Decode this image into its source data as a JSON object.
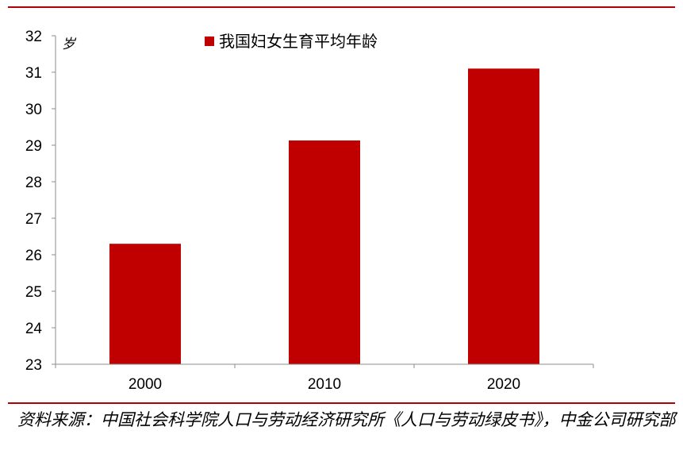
{
  "chart_data": {
    "type": "bar",
    "categories": [
      "2000",
      "2010",
      "2020"
    ],
    "series": [
      {
        "name": "我国妇女生育平均年龄",
        "values": [
          26.3,
          29.13,
          31.1
        ],
        "color": "#c00000"
      }
    ],
    "y_unit": "岁",
    "ylim": [
      23,
      32
    ],
    "yticks": [
      "23",
      "24",
      "25",
      "26",
      "27",
      "28",
      "29",
      "30",
      "31",
      "32"
    ],
    "grid": false,
    "legend_position": "top-center"
  },
  "source_note": "资料来源：中国社会科学院人口与劳动经济研究所《人口与劳动绿皮书》，中金公司研究部"
}
